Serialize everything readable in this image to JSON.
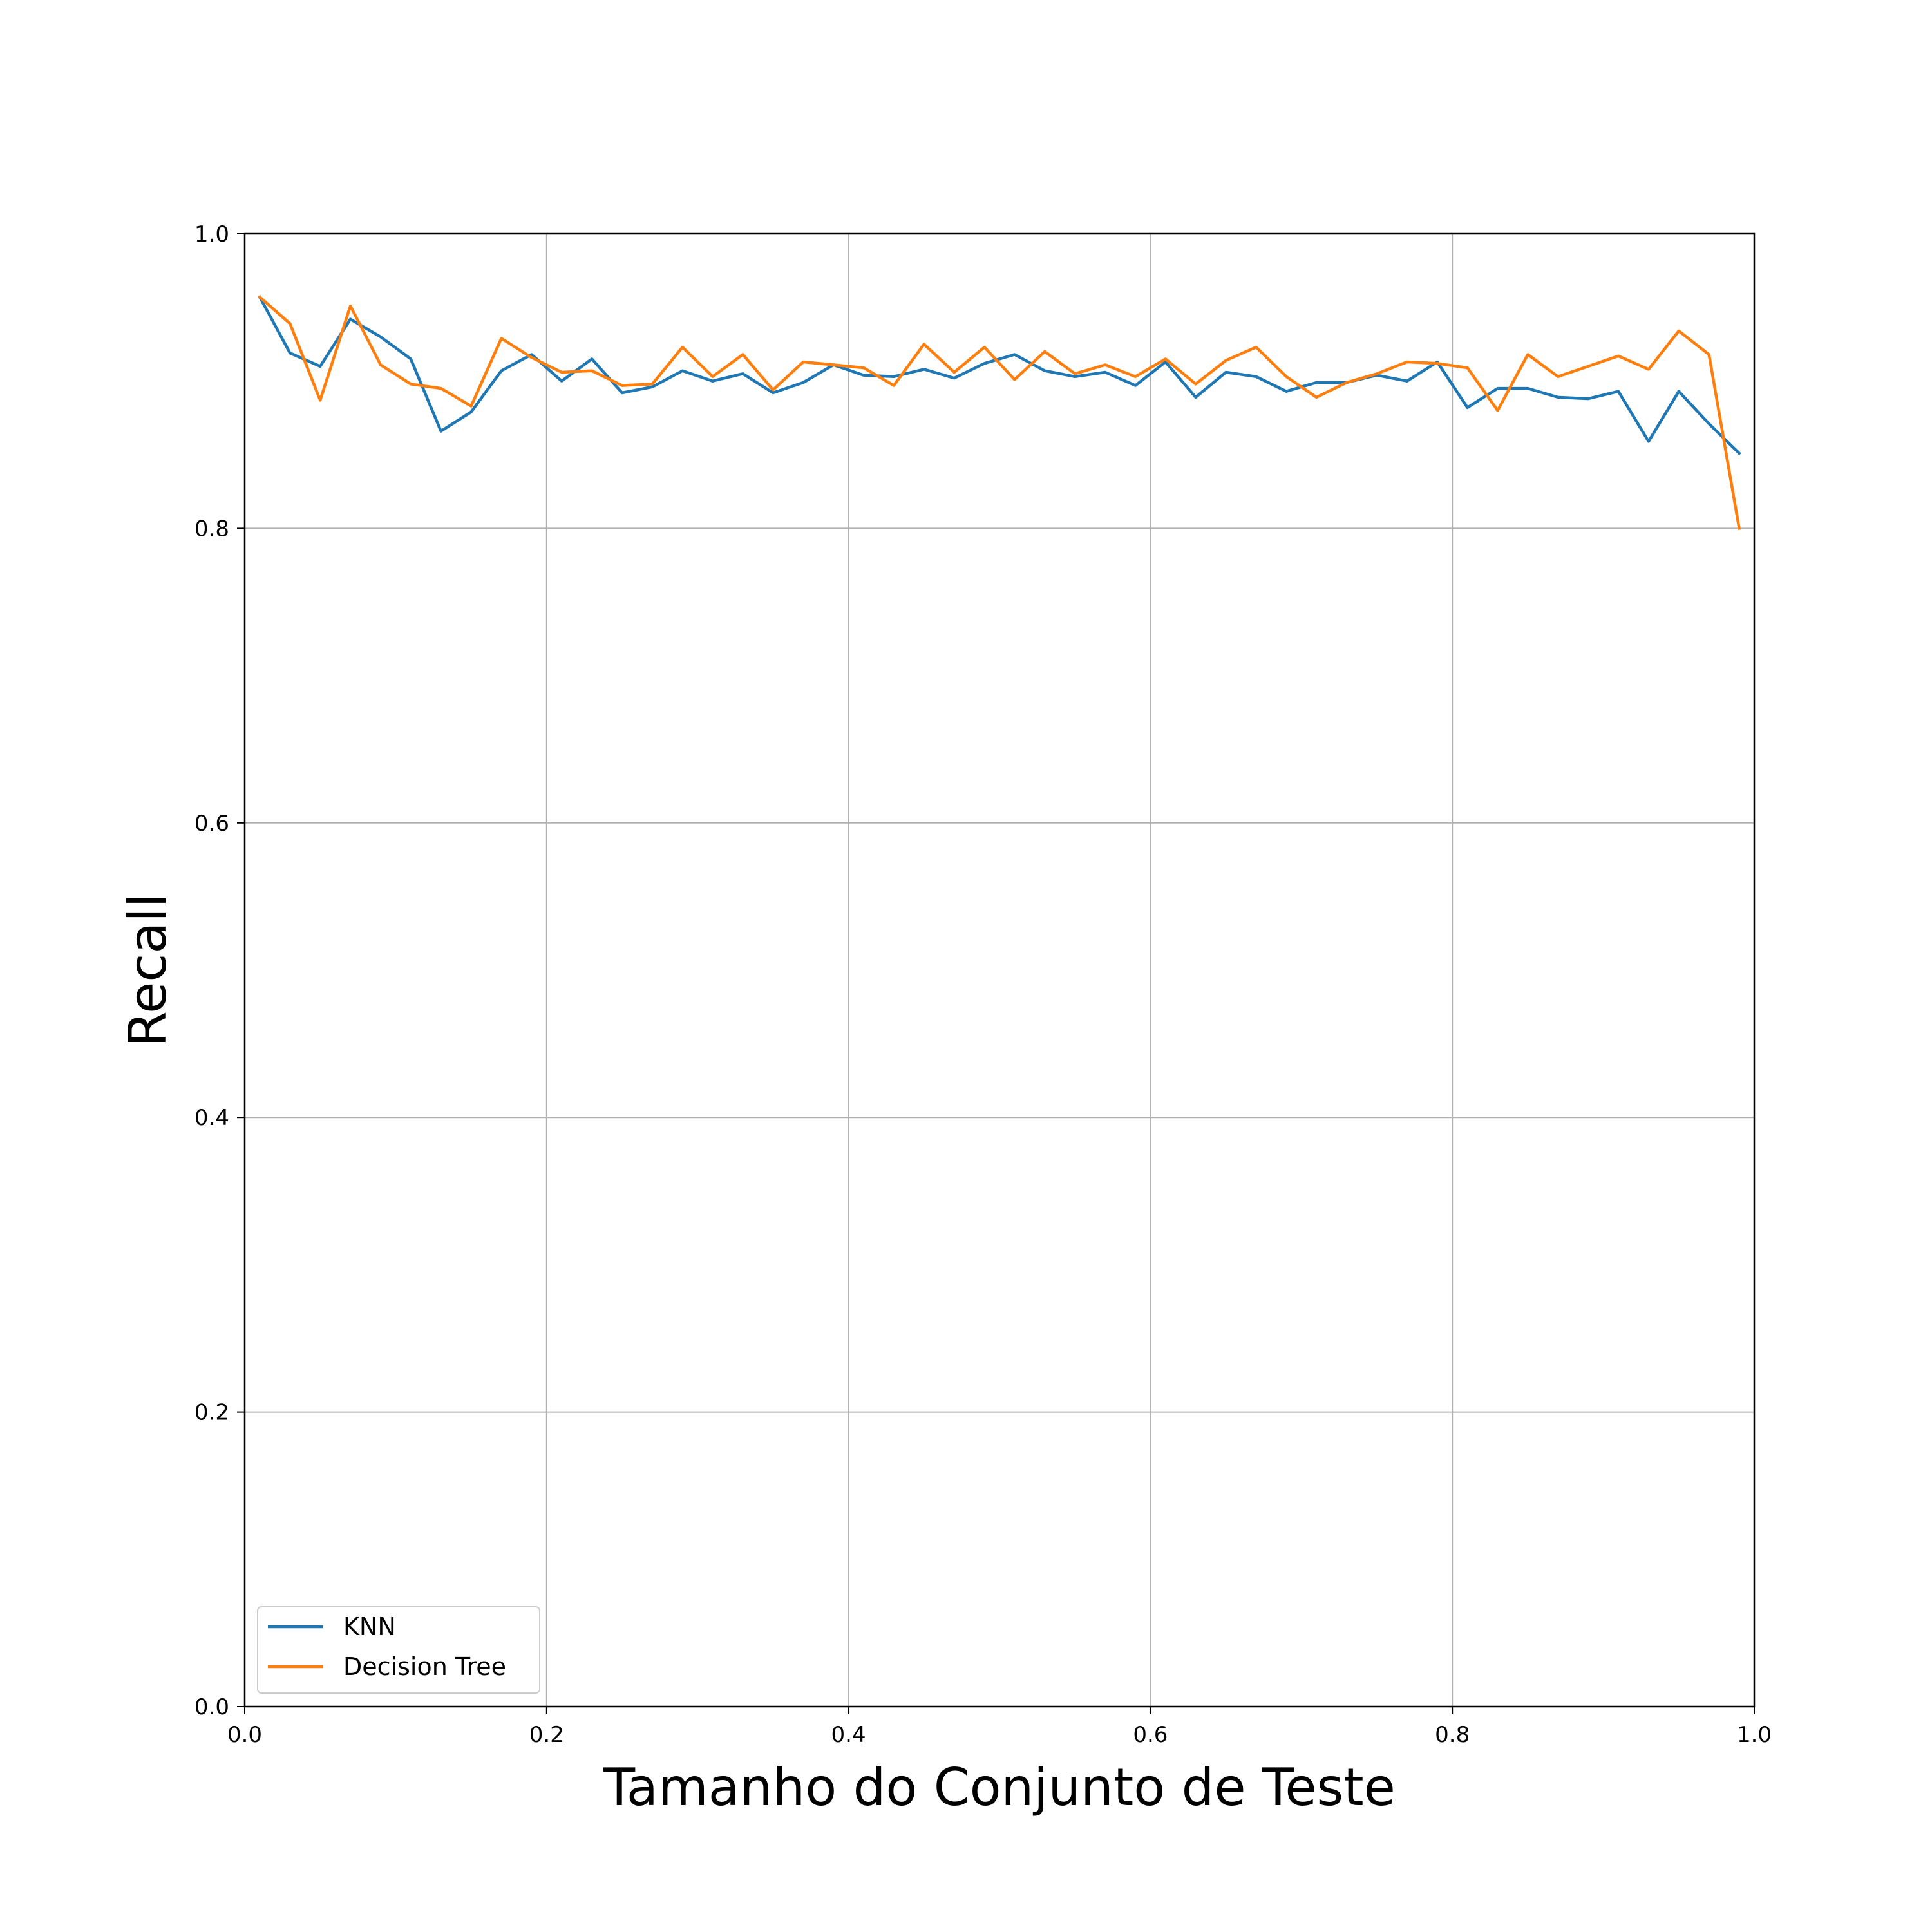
{
  "chart_data": {
    "type": "line",
    "title": "",
    "xlabel": "Tamanho do Conjunto de Teste",
    "ylabel": "Recall",
    "xlim": [
      0.0,
      1.0
    ],
    "ylim": [
      0.0,
      1.0
    ],
    "xticks": [
      "0.0",
      "0.2",
      "0.4",
      "0.6",
      "0.8",
      "1.0"
    ],
    "yticks": [
      "0.0",
      "0.2",
      "0.4",
      "0.6",
      "0.8",
      "1.0"
    ],
    "grid": true,
    "legend_position": "lower-left",
    "x": [
      0.01,
      0.03,
      0.05,
      0.07,
      0.09,
      0.11,
      0.13,
      0.15,
      0.17,
      0.19,
      0.21,
      0.23,
      0.25,
      0.27,
      0.29,
      0.31,
      0.33,
      0.35,
      0.37,
      0.39,
      0.41,
      0.43,
      0.45,
      0.47,
      0.49,
      0.51,
      0.53,
      0.55,
      0.57,
      0.59,
      0.61,
      0.63,
      0.65,
      0.67,
      0.69,
      0.71,
      0.73,
      0.75,
      0.77,
      0.79,
      0.81,
      0.83,
      0.85,
      0.87,
      0.89,
      0.91,
      0.93,
      0.95,
      0.97,
      0.99
    ],
    "series": [
      {
        "name": "KNN",
        "color": "#1f77b4",
        "values": [
          0.957,
          0.919,
          0.91,
          0.942,
          0.93,
          0.915,
          0.866,
          0.879,
          0.907,
          0.918,
          0.9,
          0.915,
          0.892,
          0.896,
          0.907,
          0.9,
          0.905,
          0.892,
          0.899,
          0.911,
          0.904,
          0.903,
          0.908,
          0.902,
          0.912,
          0.918,
          0.907,
          0.903,
          0.906,
          0.897,
          0.913,
          0.889,
          0.906,
          0.903,
          0.893,
          0.899,
          0.899,
          0.904,
          0.9,
          0.913,
          0.882,
          0.895,
          0.895,
          0.889,
          0.888,
          0.893,
          0.859,
          0.893,
          0.871,
          0.851
        ]
      },
      {
        "name": "Decision Tree",
        "color": "#ff7f0e",
        "values": [
          0.957,
          0.939,
          0.887,
          0.951,
          0.911,
          0.898,
          0.895,
          0.883,
          0.929,
          0.916,
          0.906,
          0.907,
          0.897,
          0.898,
          0.923,
          0.903,
          0.918,
          0.894,
          0.913,
          0.911,
          0.909,
          0.897,
          0.925,
          0.906,
          0.923,
          0.901,
          0.92,
          0.905,
          0.911,
          0.903,
          0.915,
          0.898,
          0.914,
          0.923,
          0.903,
          0.889,
          0.899,
          0.905,
          0.913,
          0.912,
          0.909,
          0.88,
          0.918,
          0.903,
          0.91,
          0.917,
          0.908,
          0.934,
          0.918,
          0.8
        ]
      }
    ]
  }
}
